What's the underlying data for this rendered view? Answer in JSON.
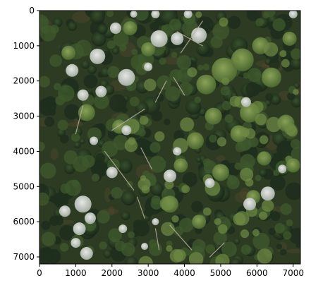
{
  "chart_data": {
    "type": "image",
    "title": "",
    "xlabel": "",
    "ylabel": "",
    "xlim": [
      0,
      7200
    ],
    "ylim": [
      7200,
      0
    ],
    "x_ticks": [
      0,
      1000,
      2000,
      3000,
      4000,
      5000,
      6000,
      7000
    ],
    "y_ticks": [
      0,
      1000,
      2000,
      3000,
      4000,
      5000,
      6000,
      7000
    ],
    "x_tick_labels": [
      "0",
      "1000",
      "2000",
      "3000",
      "4000",
      "5000",
      "6000",
      "7000"
    ],
    "y_tick_labels": [
      "0",
      "1000",
      "2000",
      "3000",
      "4000",
      "5000",
      "6000",
      "7000"
    ],
    "grid": false,
    "colors": {
      "ground": "#2c3b22",
      "canopy_dark": "#1f2e1c",
      "canopy_mid": "#3f5a2d",
      "canopy_light": "#6f8a45",
      "crown_pale": "#c9d0c9",
      "crown_white": "#e3e6e3",
      "soil": "#5a4a32",
      "log": "#b8b0a0"
    }
  }
}
